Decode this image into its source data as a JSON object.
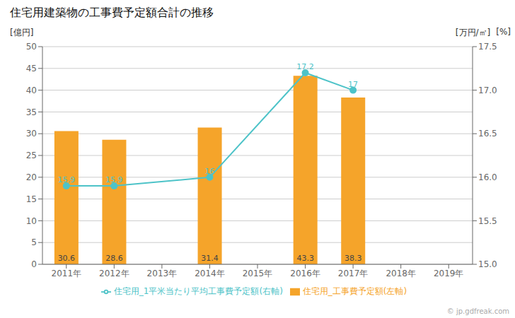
{
  "chart_data": {
    "type": "bar",
    "title": "住宅用建築物の工事費予定額合計の推移",
    "categories": [
      "2011年",
      "2012年",
      "2013年",
      "2014年",
      "2015年",
      "2016年",
      "2017年",
      "2018年",
      "2019年"
    ],
    "series": [
      {
        "name": "住宅用_工事費予定額(左軸)",
        "type": "bar",
        "color": "#f5a42a",
        "values": [
          30.6,
          28.6,
          null,
          31.4,
          null,
          43.3,
          38.3,
          null,
          null
        ]
      },
      {
        "name": "住宅用_1平米当たり平均工事費予定額(右軸)",
        "type": "line",
        "color": "#4dc3c8",
        "axis": "y2",
        "marker": "circle",
        "values": [
          15.9,
          15.9,
          null,
          16,
          null,
          17.2,
          17,
          null,
          null
        ]
      }
    ],
    "ylabel": "[億円]",
    "y2label": "[万円/㎡]",
    "annotations": [
      "[%]",
      "© jp.gdfreak.com"
    ],
    "ylim": [
      0,
      50
    ],
    "yticks": [
      0,
      5,
      10,
      15,
      20,
      25,
      30,
      35,
      40,
      45,
      50
    ],
    "y2lim": [
      15,
      17.5
    ],
    "y2ticks": [
      {
        "value": 15,
        "label": "15.0"
      },
      15.5,
      {
        "value": 16,
        "label": "16.0"
      },
      16.5,
      {
        "value": 17,
        "label": "17.0"
      },
      17.5
    ],
    "grid": true,
    "legend": "bottom",
    "data_labels": true
  }
}
